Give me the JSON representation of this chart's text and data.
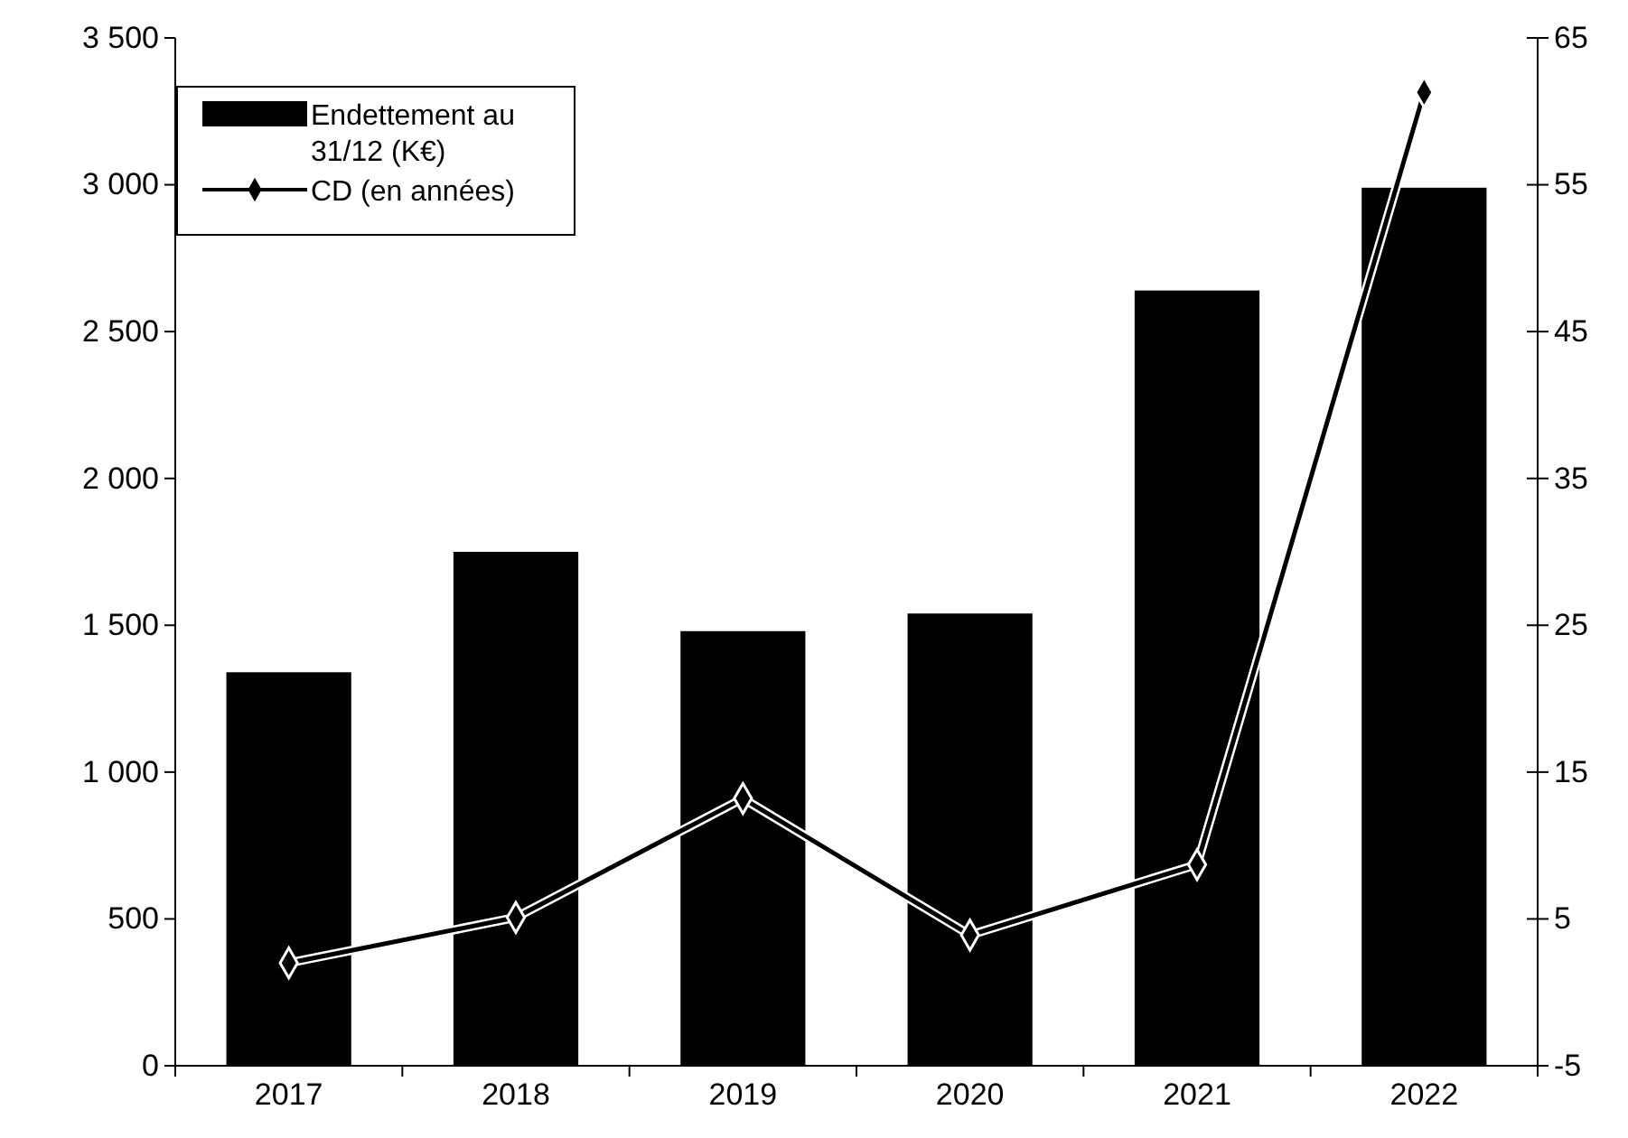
{
  "chart_data": {
    "type": "bar",
    "categories": [
      "2017",
      "2018",
      "2019",
      "2020",
      "2021",
      "2022"
    ],
    "series": [
      {
        "name": "Endettement au 31/12 (K€)",
        "color": "#000000",
        "values": [
          1340,
          1750,
          1480,
          1540,
          2640,
          2990
        ]
      },
      {
        "name": "CD (en années)",
        "type": "line",
        "axis": "y2",
        "color": "#000000",
        "values": [
          2.0,
          5.1,
          13.2,
          3.9,
          8.7,
          61.3
        ]
      }
    ],
    "ylim": [
      0,
      3500
    ],
    "yticks": [
      0,
      {
        "value": 500,
        "label": "500"
      },
      {
        "value": 1000,
        "label": "1 000"
      },
      {
        "value": 1500,
        "label": "1 500"
      },
      {
        "value": 2000,
        "label": "2 000"
      },
      {
        "value": 2500,
        "label": "2 500"
      },
      {
        "value": 3000,
        "label": "3 000"
      },
      {
        "value": 3500,
        "label": "3 500"
      }
    ],
    "y2lim": [
      -5,
      65
    ],
    "y2ticks": [
      -5,
      5,
      15,
      25,
      35,
      45,
      55,
      65
    ],
    "legend": "top left",
    "marker": "diamond",
    "line_style": "solid",
    "grid": false
  }
}
